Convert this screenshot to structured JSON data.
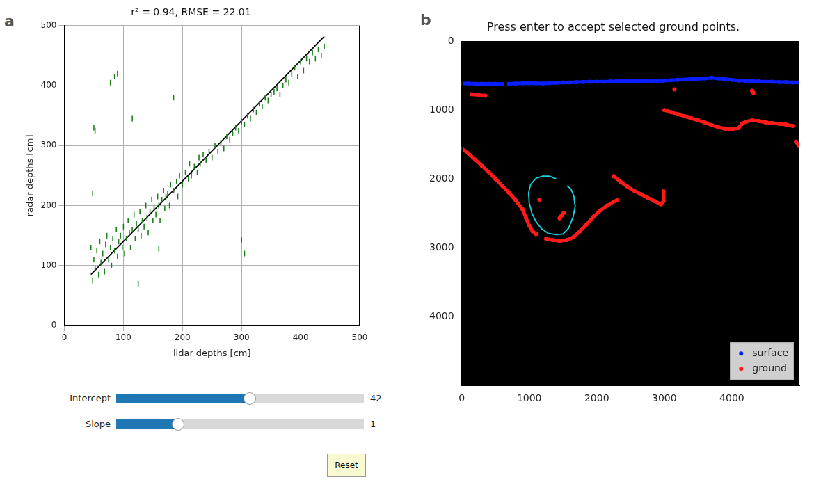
{
  "chart_data": [
    {
      "panel": "a",
      "type": "scatter",
      "title": "r² = 0.94, RMSE = 22.01",
      "x_label": "lidar depths [cm]",
      "y_label": "radar depths [cm]",
      "xlim": [
        0,
        500
      ],
      "ylim": [
        0,
        500
      ],
      "xticks": [
        0,
        100,
        200,
        300,
        400,
        500
      ],
      "yticks": [
        0,
        100,
        200,
        300,
        400,
        500
      ],
      "grid": true,
      "series": [
        {
          "type": "scatter",
          "color": "#1a7f1a",
          "marker": "vline",
          "x": [
            45,
            48,
            50,
            52,
            55,
            58,
            60,
            62,
            65,
            68,
            70,
            72,
            75,
            78,
            80,
            82,
            85,
            88,
            90,
            92,
            95,
            98,
            100,
            102,
            105,
            108,
            110,
            112,
            115,
            118,
            120,
            122,
            125,
            128,
            130,
            132,
            135,
            138,
            140,
            142,
            145,
            148,
            150,
            152,
            155,
            158,
            160,
            162,
            165,
            168,
            170,
            172,
            175,
            178,
            180,
            185,
            190,
            192,
            195,
            200,
            205,
            210,
            212,
            215,
            220,
            225,
            228,
            230,
            235,
            240,
            245,
            250,
            255,
            260,
            265,
            270,
            275,
            280,
            285,
            290,
            295,
            300,
            305,
            310,
            315,
            320,
            325,
            330,
            335,
            340,
            345,
            350,
            355,
            360,
            365,
            370,
            375,
            380,
            385,
            390,
            395,
            400,
            405,
            410,
            415,
            420,
            425,
            430,
            435,
            440,
            78,
            85,
            90,
            50,
            52,
            185,
            115,
            48,
            125,
            160,
            300,
            305
          ],
          "values": [
            130,
            75,
            110,
            95,
            125,
            85,
            140,
            105,
            120,
            90,
            135,
            150,
            110,
            130,
            100,
            145,
            125,
            160,
            115,
            140,
            150,
            130,
            165,
            120,
            145,
            175,
            155,
            130,
            160,
            185,
            145,
            170,
            160,
            190,
            150,
            175,
            165,
            200,
            180,
            155,
            190,
            210,
            175,
            195,
            185,
            215,
            200,
            175,
            210,
            225,
            195,
            215,
            220,
            200,
            235,
            225,
            240,
            215,
            250,
            235,
            255,
            245,
            270,
            250,
            265,
            255,
            280,
            270,
            285,
            275,
            290,
            280,
            300,
            290,
            305,
            295,
            315,
            310,
            320,
            330,
            325,
            340,
            335,
            350,
            345,
            360,
            355,
            370,
            365,
            380,
            375,
            385,
            390,
            395,
            385,
            400,
            410,
            405,
            420,
            430,
            415,
            440,
            425,
            445,
            440,
            455,
            445,
            460,
            450,
            465,
            405,
            415,
            420,
            330,
            325,
            380,
            345,
            220,
            70,
            128,
            143,
            120
          ]
        },
        {
          "type": "line",
          "color": "#000000",
          "marker": "none",
          "line_style": "solid",
          "x": [
            45,
            440
          ],
          "values": [
            85,
            482
          ]
        }
      ]
    },
    {
      "panel": "b",
      "type": "image",
      "title": "Press enter to accept selected ground points.",
      "xlim": [
        0,
        5000
      ],
      "ylim": [
        5000,
        0
      ],
      "xticks": [
        0,
        1000,
        2000,
        3000,
        4000
      ],
      "yticks": [
        0,
        1000,
        2000,
        3000,
        4000
      ],
      "grid": false,
      "legend": "lower right",
      "series": [
        {
          "name": "surface",
          "type": "line",
          "color": "#0a1eff",
          "marker": "circle",
          "line_style": "solid",
          "x": [
            0,
            100,
            200,
            300,
            400,
            500,
            600,
            null,
            700,
            800,
            900,
            1000,
            1100,
            1200,
            1300,
            1400,
            1500,
            1600,
            1700,
            1800,
            1900,
            2000,
            2100,
            2200,
            2300,
            2400,
            2500,
            2600,
            2700,
            2800,
            2900,
            2980,
            null,
            3000,
            3100,
            3200,
            3300,
            3400,
            3500,
            3600,
            3700,
            3800,
            3900,
            4000,
            4100,
            4200,
            4300,
            4400,
            4500,
            4600,
            4700,
            4800,
            4900,
            4990
          ],
          "values": [
            615,
            615,
            618,
            618,
            620,
            620,
            622,
            null,
            620,
            615,
            612,
            610,
            612,
            615,
            610,
            605,
            600,
            598,
            595,
            592,
            590,
            590,
            588,
            585,
            582,
            580,
            580,
            580,
            578,
            575,
            575,
            575,
            null,
            570,
            565,
            560,
            555,
            550,
            545,
            540,
            532,
            540,
            550,
            560,
            570,
            575,
            580,
            585,
            590,
            590,
            595,
            595,
            600,
            600
          ]
        },
        {
          "name": "ground",
          "type": "line",
          "color": "#ff1a1a",
          "marker": "circle",
          "line_style": "solid",
          "x": [
            150,
            250,
            350,
            null,
            0,
            100,
            200,
            300,
            400,
            500,
            600,
            700,
            800,
            900,
            950,
            1000,
            1050,
            1100,
            null,
            1250,
            1350,
            1450,
            1550,
            1650,
            1750,
            1850,
            1950,
            2050,
            2150,
            2250,
            2300,
            null,
            2250,
            2350,
            2450,
            2550,
            2650,
            2750,
            2850,
            2950,
            2990,
            2990,
            null,
            3000,
            3100,
            3200,
            3300,
            3400,
            3500,
            3600,
            3700,
            3800,
            3900,
            4000,
            4100,
            4150,
            4200,
            4300,
            4400,
            4500,
            4600,
            4700,
            4800,
            4900,
            null,
            4950,
            4990,
            null,
            1150,
            null,
            1450,
            1480,
            1510,
            null,
            3150,
            null,
            4300,
            4320
          ],
          "values": [
            770,
            780,
            790,
            null,
            1560,
            1630,
            1720,
            1810,
            1900,
            2000,
            2100,
            2200,
            2310,
            2440,
            2560,
            2680,
            2760,
            2800,
            null,
            2870,
            2890,
            2900,
            2890,
            2850,
            2760,
            2660,
            2550,
            2460,
            2390,
            2330,
            2310,
            null,
            1960,
            2040,
            2110,
            2170,
            2220,
            2270,
            2320,
            2370,
            2320,
            2180,
            null,
            1000,
            1030,
            1060,
            1090,
            1120,
            1150,
            1180,
            1220,
            1250,
            1270,
            1280,
            1260,
            1200,
            1170,
            1150,
            1160,
            1180,
            1190,
            1200,
            1210,
            1230,
            null,
            1460,
            1520,
            null,
            2300,
            null,
            2570,
            2530,
            2490,
            null,
            700,
            null,
            720,
            750
          ]
        },
        {
          "type": "line",
          "color": "#17d4e0",
          "marker": "none",
          "line_style": "solid",
          "x": [
            1400,
            1300,
            1200,
            1100,
            1020,
            990,
            1000,
            1040,
            1100,
            1180,
            1280,
            1400,
            1500,
            1580,
            1650,
            1680,
            1660,
            1620,
            1560
          ],
          "values": [
            2000,
            1960,
            1960,
            1990,
            2080,
            2200,
            2350,
            2500,
            2620,
            2720,
            2790,
            2810,
            2800,
            2720,
            2550,
            2400,
            2250,
            2150,
            2100
          ]
        }
      ]
    }
  ],
  "controls": {
    "sliders": [
      {
        "label": "Intercept",
        "value": 42,
        "range": [
          0,
          78
        ]
      },
      {
        "label": "Slope",
        "value": 1,
        "range": [
          0,
          4
        ]
      }
    ],
    "button": "Reset"
  }
}
